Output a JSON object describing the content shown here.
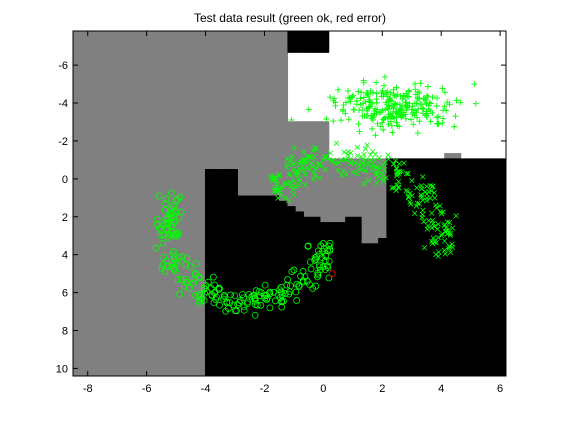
{
  "chart_data": {
    "type": "scatter",
    "title": "Test data result (green ok, red error)",
    "xlabel": "",
    "ylabel": "",
    "xlim": [
      -8.5,
      6.2
    ],
    "ylim": [
      -7.8,
      10.4
    ],
    "y_reversed": true,
    "x_ticks": [
      "-8",
      "-6",
      "-4",
      "-2",
      "0",
      "2",
      "4",
      "6"
    ],
    "x_tick_values": [
      -8,
      -6,
      -4,
      -2,
      0,
      2,
      4,
      6
    ],
    "y_ticks": [
      "-6",
      "-4",
      "-2",
      "0",
      "2",
      "4",
      "6",
      "8",
      "10"
    ],
    "y_tick_values": [
      -6,
      -4,
      -2,
      0,
      2,
      4,
      6,
      8,
      10
    ],
    "grid": false,
    "legend": "none",
    "colors": {
      "correct": "#00ff00",
      "error": "#ff0000",
      "region_white": "#ffffff",
      "region_gray": "#808080",
      "region_black": "#000000"
    },
    "background_regions": [
      {
        "class": "white",
        "color": "#ffffff"
      },
      {
        "class": "gray",
        "color": "#808080"
      },
      {
        "class": "black",
        "color": "#000000"
      }
    ],
    "series": [
      {
        "marker": "plus",
        "color": "#00ff00",
        "center": [
          2.4,
          -3.8
        ],
        "spread": [
          1.0,
          0.6
        ],
        "count": 260
      },
      {
        "marker": "circle",
        "color": "#00ff00",
        "arc_center": [
          -2.6,
          2.6
        ],
        "arc_radius": 4.9,
        "arc_degrees": [
          150,
          350
        ],
        "count": 230
      },
      {
        "marker": "x",
        "color": "#00ff00",
        "arc_center": [
          0.7,
          0.6
        ],
        "arc_radius": 7.2,
        "arc_degrees": [
          10,
          135
        ],
        "count": 270
      }
    ],
    "errors": [
      {
        "x": 0.3,
        "y": 5.0,
        "marker": "circle",
        "color": "#ff0000"
      }
    ]
  }
}
